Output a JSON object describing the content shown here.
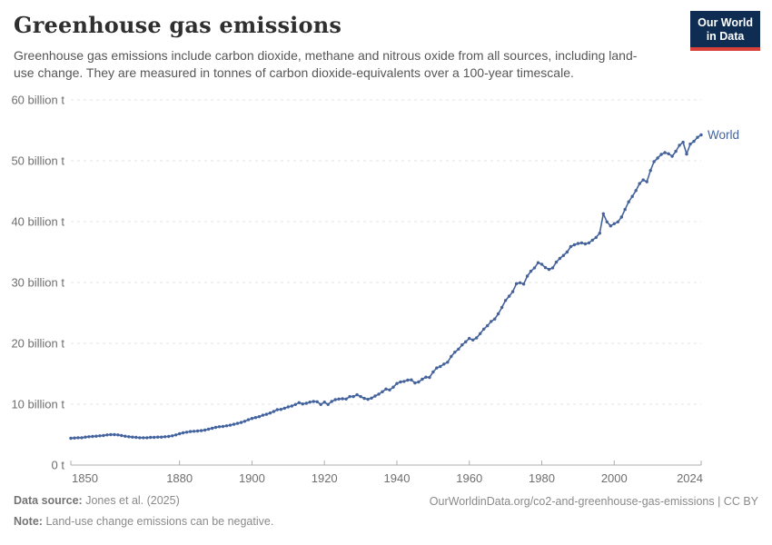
{
  "header": {
    "title": "Greenhouse gas emissions",
    "subtitle": "Greenhouse gas emissions include carbon dioxide, methane and nitrous oxide from all sources, including land-use change. They are measured in tonnes of carbon dioxide-equivalents over a 100-year timescale.",
    "logo": {
      "line1": "Our World",
      "line2": "in Data",
      "bg_color": "#0f2d52",
      "accent_color": "#d8413a"
    }
  },
  "chart_data": {
    "type": "line",
    "title": "Greenhouse gas emissions",
    "ylabel": "",
    "xlabel": "",
    "unit": "billion t",
    "xlim": [
      1850,
      2024
    ],
    "ylim": [
      0,
      60
    ],
    "grid": "horizontal-dashed",
    "legend_position": "end-of-line-label",
    "x_ticks": [
      1850,
      1880,
      1900,
      1920,
      1940,
      1960,
      1980,
      2000,
      2024
    ],
    "y_ticks": [
      {
        "value": 0,
        "label": "0 t"
      },
      {
        "value": 10,
        "label": "10 billion t"
      },
      {
        "value": 20,
        "label": "20 billion t"
      },
      {
        "value": 30,
        "label": "30 billion t"
      },
      {
        "value": 40,
        "label": "40 billion t"
      },
      {
        "value": 50,
        "label": "50 billion t"
      },
      {
        "value": 60,
        "label": "60 billion t"
      }
    ],
    "x": [
      1850,
      1851,
      1852,
      1853,
      1854,
      1855,
      1856,
      1857,
      1858,
      1859,
      1860,
      1861,
      1862,
      1863,
      1864,
      1865,
      1866,
      1867,
      1868,
      1869,
      1870,
      1871,
      1872,
      1873,
      1874,
      1875,
      1876,
      1877,
      1878,
      1879,
      1880,
      1881,
      1882,
      1883,
      1884,
      1885,
      1886,
      1887,
      1888,
      1889,
      1890,
      1891,
      1892,
      1893,
      1894,
      1895,
      1896,
      1897,
      1898,
      1899,
      1900,
      1901,
      1902,
      1903,
      1904,
      1905,
      1906,
      1907,
      1908,
      1909,
      1910,
      1911,
      1912,
      1913,
      1914,
      1915,
      1916,
      1917,
      1918,
      1919,
      1920,
      1921,
      1922,
      1923,
      1924,
      1925,
      1926,
      1927,
      1928,
      1929,
      1930,
      1931,
      1932,
      1933,
      1934,
      1935,
      1936,
      1937,
      1938,
      1939,
      1940,
      1941,
      1942,
      1943,
      1944,
      1945,
      1946,
      1947,
      1948,
      1949,
      1950,
      1951,
      1952,
      1953,
      1954,
      1955,
      1956,
      1957,
      1958,
      1959,
      1960,
      1961,
      1962,
      1963,
      1964,
      1965,
      1966,
      1967,
      1968,
      1969,
      1970,
      1971,
      1972,
      1973,
      1974,
      1975,
      1976,
      1977,
      1978,
      1979,
      1980,
      1981,
      1982,
      1983,
      1984,
      1985,
      1986,
      1987,
      1988,
      1989,
      1990,
      1991,
      1992,
      1993,
      1994,
      1995,
      1996,
      1997,
      1998,
      1999,
      2000,
      2001,
      2002,
      2003,
      2004,
      2005,
      2006,
      2007,
      2008,
      2009,
      2010,
      2011,
      2012,
      2013,
      2014,
      2015,
      2016,
      2017,
      2018,
      2019,
      2020,
      2021,
      2022,
      2023,
      2024
    ],
    "series": [
      {
        "name": "World",
        "color": "#44639c",
        "values": [
          4.4,
          4.45,
          4.5,
          4.5,
          4.6,
          4.65,
          4.7,
          4.75,
          4.8,
          4.85,
          4.95,
          5.0,
          5.0,
          4.95,
          4.85,
          4.75,
          4.65,
          4.6,
          4.55,
          4.5,
          4.5,
          4.5,
          4.55,
          4.55,
          4.6,
          4.6,
          4.65,
          4.7,
          4.8,
          4.95,
          5.15,
          5.3,
          5.4,
          5.5,
          5.55,
          5.6,
          5.65,
          5.75,
          5.9,
          6.05,
          6.2,
          6.3,
          6.35,
          6.45,
          6.55,
          6.7,
          6.85,
          7.0,
          7.2,
          7.45,
          7.65,
          7.8,
          7.95,
          8.2,
          8.35,
          8.55,
          8.8,
          9.1,
          9.15,
          9.35,
          9.55,
          9.7,
          9.95,
          10.25,
          10.05,
          10.15,
          10.35,
          10.45,
          10.4,
          9.95,
          10.35,
          9.95,
          10.45,
          10.75,
          10.85,
          10.9,
          10.85,
          11.25,
          11.25,
          11.55,
          11.25,
          10.95,
          10.8,
          11.0,
          11.35,
          11.65,
          12.05,
          12.5,
          12.35,
          12.8,
          13.4,
          13.65,
          13.75,
          13.95,
          14.0,
          13.5,
          13.65,
          14.1,
          14.45,
          14.4,
          15.3,
          15.95,
          16.2,
          16.6,
          16.9,
          17.85,
          18.55,
          19.05,
          19.75,
          20.25,
          20.8,
          20.55,
          20.9,
          21.6,
          22.35,
          22.9,
          23.6,
          24.0,
          24.85,
          25.9,
          27.05,
          27.75,
          28.5,
          29.8,
          29.95,
          29.75,
          31.05,
          31.85,
          32.4,
          33.25,
          33.0,
          32.45,
          32.15,
          32.4,
          33.35,
          33.95,
          34.45,
          35.0,
          35.9,
          36.2,
          36.4,
          36.5,
          36.35,
          36.5,
          36.95,
          37.4,
          38.1,
          41.3,
          39.95,
          39.3,
          39.65,
          39.95,
          40.75,
          42.0,
          43.25,
          44.15,
          45.1,
          46.25,
          46.85,
          46.55,
          48.4,
          49.85,
          50.45,
          51.05,
          51.35,
          51.15,
          50.75,
          51.55,
          52.55,
          53.05,
          51.1,
          52.75,
          53.2,
          53.85,
          54.25
        ]
      }
    ],
    "colors": {
      "grid": "#e3e3e3",
      "axis": "#adadad",
      "tick_text": "#6e6e6e"
    }
  },
  "footer": {
    "data_source_label": "Data source:",
    "data_source_value": "Jones et al. (2025)",
    "note_label": "Note:",
    "note_value": "Land-use change emissions can be negative.",
    "citation": "OurWorldinData.org/co2-and-greenhouse-gas-emissions | CC BY"
  }
}
